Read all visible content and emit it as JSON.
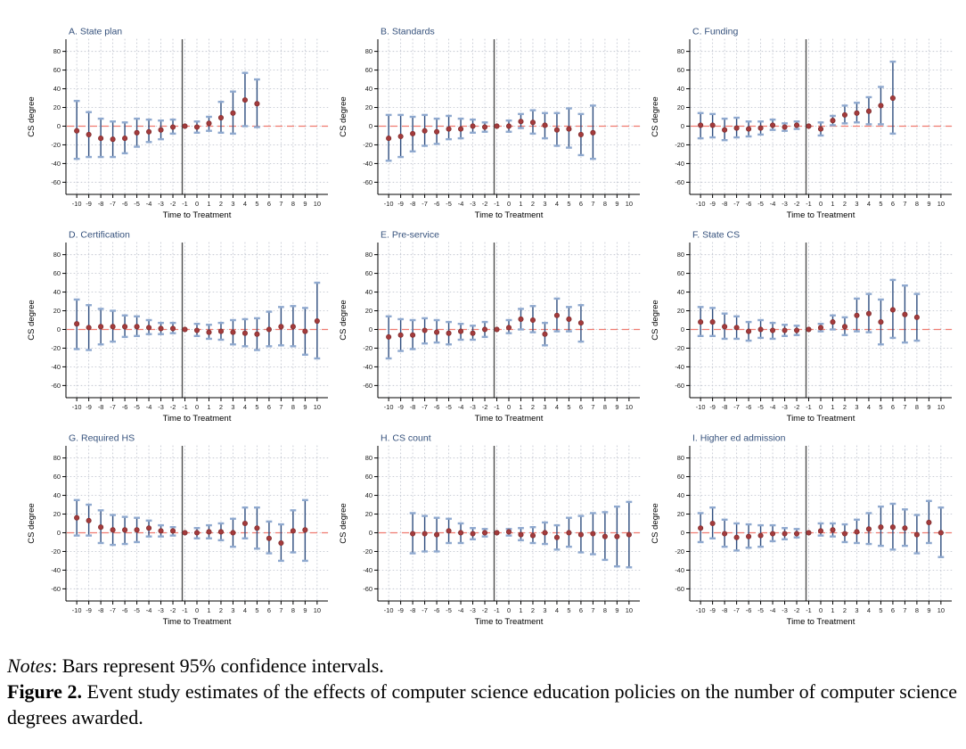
{
  "caption": {
    "notes_label": "Notes",
    "notes_text": ": Bars represent 95% confidence intervals.",
    "figure_label": "Figure 2.",
    "figure_text": " Event study estimates of the effects of computer science education policies on the number of computer science degrees awarded."
  },
  "colors": {
    "title": "#35517c",
    "spike": "#2e4d7e",
    "cap": "#8fa9cf",
    "dot_fill": "#a33b3c",
    "dot_stroke": "#7c2a2b",
    "zero_line": "#ef7b70",
    "treatment_line": "#4f4f4f",
    "grid_dot": "#c3c7d1",
    "axis": "#000000",
    "tick_text": "#1a1a1a"
  },
  "chart_data": {
    "type": "scatter",
    "subtype": "event-study-errorbar-grid",
    "grid": [
      3,
      3
    ],
    "xlabel": "Time to Treatment",
    "ylabel": "CS degree",
    "xlim": [
      -10.9,
      10.9
    ],
    "ylim": [
      -73,
      93
    ],
    "xticks": [
      -10,
      -9,
      -8,
      -7,
      -6,
      -5,
      -4,
      -3,
      -2,
      -1,
      0,
      1,
      2,
      3,
      4,
      5,
      6,
      7,
      8,
      9,
      10
    ],
    "yticks": [
      -60,
      -40,
      -20,
      0,
      20,
      40,
      60,
      80
    ],
    "grid_on": true,
    "reference_vline_x": -1,
    "reference_hline_y": 0,
    "legend_position": "none",
    "note": "points are [time, estimate, ci_low, ci_high]; the -1 period is the reference with no CI bar",
    "panels": [
      {
        "id": "a-state-plan",
        "title": "A. State plan",
        "points": [
          [
            -10,
            -5,
            -35,
            27
          ],
          [
            -9,
            -9,
            -33,
            15
          ],
          [
            -8,
            -13,
            -33,
            8
          ],
          [
            -7,
            -14,
            -33,
            5
          ],
          [
            -6,
            -13,
            -29,
            4
          ],
          [
            -5,
            -7,
            -22,
            8
          ],
          [
            -4,
            -6,
            -17,
            7
          ],
          [
            -3,
            -4,
            -14,
            6
          ],
          [
            -2,
            -1,
            -8,
            7
          ],
          [
            -1,
            0,
            0,
            0
          ],
          [
            0,
            -1,
            -7,
            5
          ],
          [
            1,
            3,
            -5,
            10
          ],
          [
            2,
            9,
            -7,
            26
          ],
          [
            3,
            14,
            -8,
            37
          ],
          [
            4,
            28,
            0,
            57
          ],
          [
            5,
            24,
            -1,
            50
          ]
        ]
      },
      {
        "id": "b-standards",
        "title": "B. Standards",
        "points": [
          [
            -10,
            -13,
            -37,
            12
          ],
          [
            -9,
            -11,
            -33,
            12
          ],
          [
            -8,
            -8,
            -27,
            10
          ],
          [
            -7,
            -5,
            -21,
            12
          ],
          [
            -6,
            -6,
            -19,
            8
          ],
          [
            -5,
            -3,
            -14,
            11
          ],
          [
            -4,
            -3,
            -13,
            8
          ],
          [
            -3,
            0,
            -7,
            7
          ],
          [
            -2,
            -1,
            -6,
            4
          ],
          [
            -1,
            0,
            0,
            0
          ],
          [
            0,
            0,
            -6,
            6
          ],
          [
            1,
            5,
            -2,
            13
          ],
          [
            2,
            4,
            -8,
            17
          ],
          [
            3,
            1,
            -13,
            14
          ],
          [
            4,
            -4,
            -21,
            14
          ],
          [
            5,
            -3,
            -23,
            19
          ],
          [
            6,
            -9,
            -31,
            13
          ],
          [
            7,
            -7,
            -35,
            22
          ]
        ]
      },
      {
        "id": "c-funding",
        "title": "C. Funding",
        "points": [
          [
            -10,
            1,
            -13,
            14
          ],
          [
            -9,
            1,
            -12,
            13
          ],
          [
            -8,
            -4,
            -15,
            8
          ],
          [
            -7,
            -2,
            -12,
            9
          ],
          [
            -6,
            -3,
            -11,
            5
          ],
          [
            -5,
            -2,
            -9,
            5
          ],
          [
            -4,
            1,
            -4,
            7
          ],
          [
            -3,
            -1,
            -5,
            3
          ],
          [
            -2,
            1,
            -3,
            5
          ],
          [
            -1,
            0,
            0,
            0
          ],
          [
            0,
            -3,
            -10,
            4
          ],
          [
            1,
            6,
            1,
            11
          ],
          [
            2,
            12,
            3,
            22
          ],
          [
            3,
            14,
            4,
            25
          ],
          [
            4,
            16,
            2,
            31
          ],
          [
            5,
            22,
            2,
            42
          ],
          [
            6,
            30,
            -8,
            69
          ]
        ]
      },
      {
        "id": "d-certification",
        "title": "D. Certification",
        "points": [
          [
            -10,
            6,
            -21,
            32
          ],
          [
            -9,
            2,
            -22,
            26
          ],
          [
            -8,
            3,
            -16,
            22
          ],
          [
            -7,
            3,
            -13,
            20
          ],
          [
            -6,
            3,
            -8,
            15
          ],
          [
            -5,
            3,
            -7,
            14
          ],
          [
            -4,
            2,
            -5,
            10
          ],
          [
            -3,
            1,
            -5,
            7
          ],
          [
            -2,
            1,
            -4,
            7
          ],
          [
            -1,
            0,
            0,
            0
          ],
          [
            0,
            -1,
            -7,
            6
          ],
          [
            1,
            -3,
            -10,
            5
          ],
          [
            2,
            -2,
            -11,
            7
          ],
          [
            3,
            -3,
            -16,
            10
          ],
          [
            4,
            -4,
            -18,
            11
          ],
          [
            5,
            -5,
            -22,
            12
          ],
          [
            6,
            0,
            -18,
            19
          ],
          [
            7,
            3,
            -17,
            24
          ],
          [
            8,
            3,
            -18,
            25
          ],
          [
            9,
            -2,
            -27,
            23
          ],
          [
            10,
            9,
            -31,
            50
          ]
        ]
      },
      {
        "id": "e-pre-service",
        "title": "E. Pre-service",
        "points": [
          [
            -10,
            -8,
            -31,
            14
          ],
          [
            -9,
            -6,
            -23,
            11
          ],
          [
            -8,
            -6,
            -21,
            10
          ],
          [
            -7,
            -1,
            -15,
            12
          ],
          [
            -6,
            -3,
            -14,
            10
          ],
          [
            -5,
            -4,
            -16,
            8
          ],
          [
            -4,
            -2,
            -11,
            6
          ],
          [
            -3,
            -4,
            -11,
            4
          ],
          [
            -2,
            0,
            -8,
            8
          ],
          [
            -1,
            0,
            0,
            0
          ],
          [
            0,
            2,
            -4,
            10
          ],
          [
            1,
            11,
            0,
            22
          ],
          [
            2,
            10,
            -3,
            25
          ],
          [
            3,
            -5,
            -17,
            7
          ],
          [
            4,
            15,
            -2,
            33
          ],
          [
            5,
            11,
            -2,
            24
          ],
          [
            6,
            7,
            -13,
            26
          ]
        ]
      },
      {
        "id": "f-state-cs",
        "title": "F. State CS",
        "points": [
          [
            -10,
            8,
            -7,
            24
          ],
          [
            -9,
            8,
            -7,
            23
          ],
          [
            -8,
            3,
            -10,
            17
          ],
          [
            -7,
            2,
            -10,
            14
          ],
          [
            -6,
            -2,
            -12,
            8
          ],
          [
            -5,
            0,
            -9,
            10
          ],
          [
            -4,
            -1,
            -10,
            7
          ],
          [
            -3,
            -1,
            -7,
            5
          ],
          [
            -2,
            -1,
            -6,
            4
          ],
          [
            -1,
            0,
            0,
            0
          ],
          [
            0,
            2,
            -2,
            6
          ],
          [
            1,
            8,
            0,
            15
          ],
          [
            2,
            3,
            -6,
            13
          ],
          [
            3,
            15,
            -2,
            33
          ],
          [
            4,
            17,
            -3,
            38
          ],
          [
            5,
            8,
            -16,
            32
          ],
          [
            6,
            21,
            -9,
            53
          ],
          [
            7,
            16,
            -14,
            47
          ],
          [
            8,
            13,
            -12,
            38
          ]
        ]
      },
      {
        "id": "g-required-hs",
        "title": "G. Required HS",
        "points": [
          [
            -10,
            16,
            -3,
            35
          ],
          [
            -9,
            13,
            -3,
            30
          ],
          [
            -8,
            6,
            -11,
            24
          ],
          [
            -7,
            3,
            -13,
            19
          ],
          [
            -6,
            3,
            -12,
            17
          ],
          [
            -5,
            3,
            -10,
            16
          ],
          [
            -4,
            5,
            -4,
            13
          ],
          [
            -3,
            2,
            -4,
            8
          ],
          [
            -2,
            2,
            -3,
            6
          ],
          [
            -1,
            0,
            0,
            0
          ],
          [
            0,
            0,
            -6,
            5
          ],
          [
            1,
            1,
            -6,
            8
          ],
          [
            2,
            1,
            -8,
            10
          ],
          [
            3,
            0,
            -15,
            15
          ],
          [
            4,
            10,
            -6,
            27
          ],
          [
            5,
            5,
            -17,
            27
          ],
          [
            6,
            -6,
            -22,
            12
          ],
          [
            7,
            -11,
            -30,
            9
          ],
          [
            8,
            2,
            -21,
            24
          ],
          [
            9,
            3,
            -30,
            35
          ]
        ]
      },
      {
        "id": "h-cs-count",
        "title": "H. CS count",
        "points": [
          [
            -8,
            -1,
            -22,
            21
          ],
          [
            -7,
            -1,
            -20,
            18
          ],
          [
            -6,
            -2,
            -20,
            16
          ],
          [
            -5,
            2,
            -11,
            15
          ],
          [
            -4,
            0,
            -11,
            10
          ],
          [
            -3,
            -1,
            -7,
            5
          ],
          [
            -2,
            0,
            -4,
            4
          ],
          [
            -1,
            0,
            0,
            0
          ],
          [
            0,
            1,
            -3,
            4
          ],
          [
            1,
            -2,
            -8,
            5
          ],
          [
            2,
            -3,
            -11,
            6
          ],
          [
            3,
            0,
            -12,
            11
          ],
          [
            4,
            -5,
            -18,
            8
          ],
          [
            5,
            0,
            -15,
            16
          ],
          [
            6,
            -2,
            -21,
            18
          ],
          [
            7,
            -1,
            -23,
            21
          ],
          [
            8,
            -4,
            -29,
            22
          ],
          [
            9,
            -4,
            -36,
            28
          ],
          [
            10,
            -2,
            -37,
            33
          ]
        ]
      },
      {
        "id": "i-higher-ed-admission",
        "title": "I. Higher ed admission",
        "points": [
          [
            -10,
            5,
            -10,
            21
          ],
          [
            -9,
            10,
            -6,
            27
          ],
          [
            -8,
            -1,
            -15,
            14
          ],
          [
            -7,
            -5,
            -19,
            10
          ],
          [
            -6,
            -4,
            -16,
            9
          ],
          [
            -5,
            -3,
            -15,
            8
          ],
          [
            -4,
            -1,
            -9,
            8
          ],
          [
            -3,
            -1,
            -7,
            5
          ],
          [
            -2,
            -1,
            -5,
            4
          ],
          [
            -1,
            0,
            0,
            0
          ],
          [
            0,
            2,
            -3,
            10
          ],
          [
            1,
            3,
            -4,
            10
          ],
          [
            2,
            -1,
            -10,
            9
          ],
          [
            3,
            1,
            -11,
            14
          ],
          [
            4,
            4,
            -12,
            21
          ],
          [
            5,
            6,
            -14,
            28
          ],
          [
            6,
            6,
            -18,
            31
          ],
          [
            7,
            5,
            -14,
            25
          ],
          [
            8,
            -2,
            -22,
            19
          ],
          [
            9,
            11,
            -11,
            34
          ],
          [
            10,
            0,
            -26,
            27
          ]
        ]
      }
    ]
  }
}
